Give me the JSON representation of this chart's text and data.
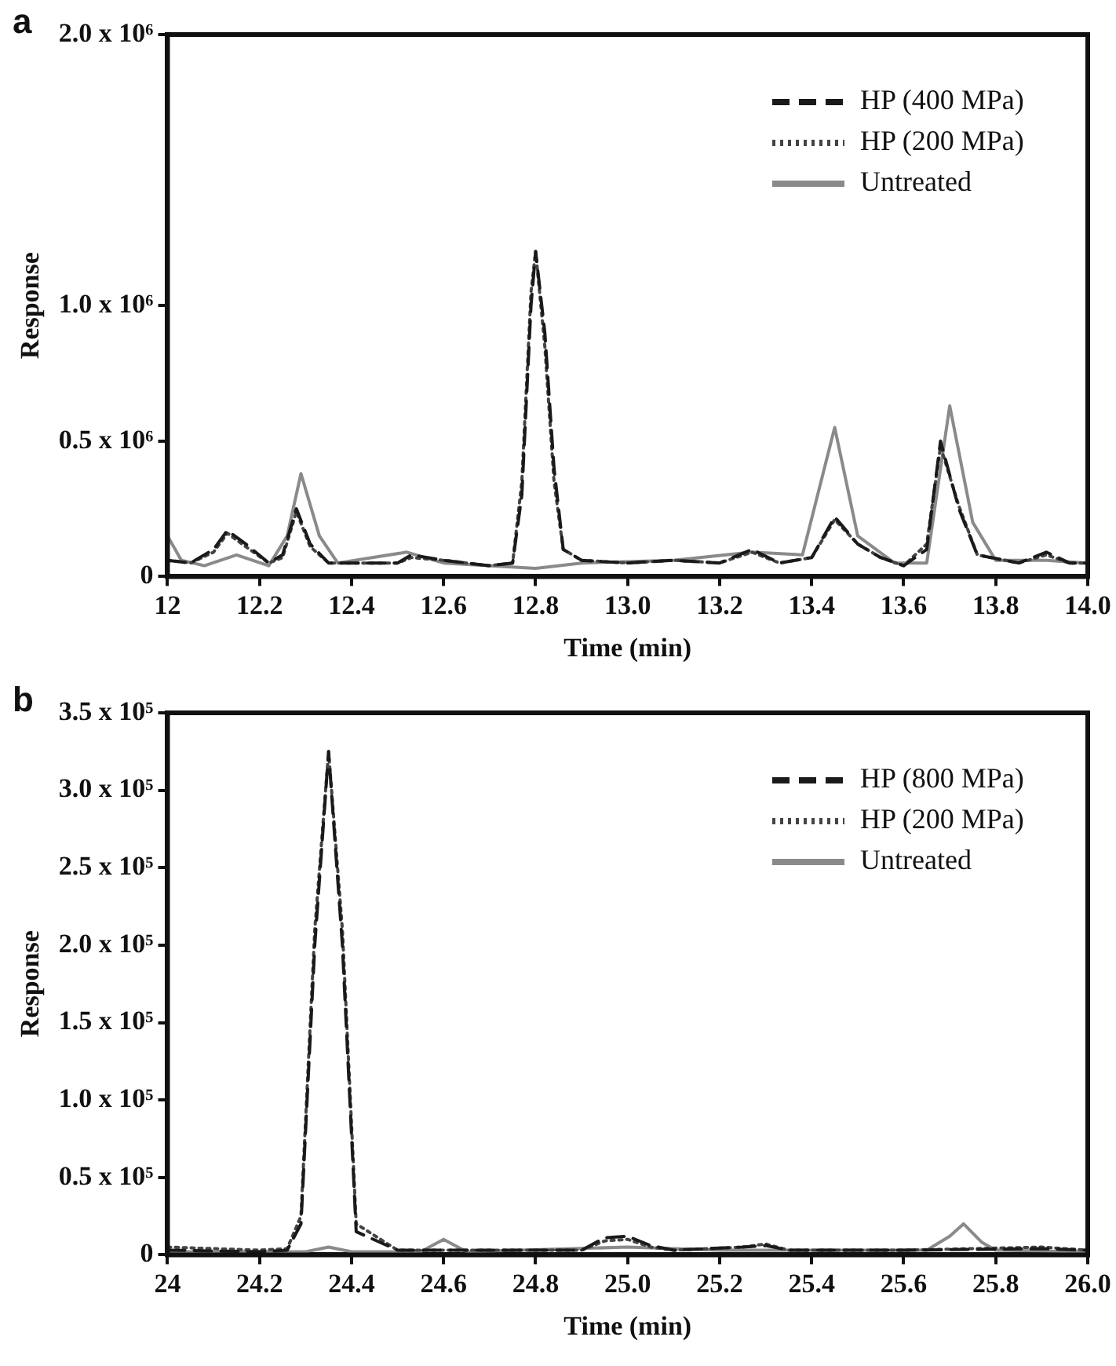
{
  "chart_data": [
    {
      "type": "line",
      "annotations": [
        "a"
      ],
      "xlabel": "Time (min)",
      "ylabel": "Response",
      "xlim": [
        12,
        14
      ],
      "ylim": [
        0,
        2000000
      ],
      "xticks": [
        12,
        12.2,
        12.4,
        12.6,
        12.8,
        {
          "value": 13,
          "label": "13.0"
        },
        13.2,
        13.4,
        13.6,
        13.8,
        {
          "value": 14,
          "label": "14.0"
        }
      ],
      "yticks": [
        0,
        {
          "value": 500000,
          "label": "0.5 x 10⁶"
        },
        {
          "value": 1000000,
          "label": "1.0 x 10⁶"
        },
        {
          "value": 2000000,
          "label": "2.0 x 10⁶"
        }
      ],
      "legend": "top right",
      "grid": false,
      "series": [
        {
          "name": "HP (400 MPa)",
          "color": "#1a1a1a",
          "line_style": "dashed",
          "x": [
            12,
            12.05,
            12.1,
            12.13,
            12.17,
            12.22,
            12.25,
            12.28,
            12.31,
            12.35,
            12.5,
            12.53,
            12.6,
            12.7,
            12.75,
            12.77,
            12.79,
            12.8,
            12.82,
            12.84,
            12.86,
            12.9,
            13,
            13.1,
            13.2,
            13.27,
            13.33,
            13.4,
            13.45,
            13.5,
            13.55,
            13.6,
            13.65,
            13.68,
            13.72,
            13.76,
            13.85,
            13.91,
            13.96,
            14
          ],
          "values": [
            60000,
            50000,
            100000,
            170000,
            120000,
            50000,
            80000,
            250000,
            120000,
            50000,
            50000,
            80000,
            60000,
            40000,
            50000,
            300000,
            1000000,
            1200000,
            900000,
            400000,
            100000,
            60000,
            50000,
            60000,
            50000,
            100000,
            50000,
            70000,
            220000,
            120000,
            70000,
            40000,
            100000,
            500000,
            250000,
            80000,
            50000,
            90000,
            50000,
            50000
          ]
        },
        {
          "name": "HP (200 MPa)",
          "color": "#444444",
          "line_style": "dotted",
          "x": [
            12,
            12.05,
            12.1,
            12.13,
            12.17,
            12.22,
            12.25,
            12.28,
            12.31,
            12.35,
            12.5,
            12.53,
            12.6,
            12.7,
            12.75,
            12.77,
            12.79,
            12.8,
            12.82,
            12.84,
            12.86,
            12.9,
            13,
            13.1,
            13.2,
            13.27,
            13.33,
            13.4,
            13.45,
            13.5,
            13.55,
            13.6,
            13.65,
            13.68,
            13.72,
            13.76,
            13.85,
            13.91,
            13.96,
            14
          ],
          "values": [
            60000,
            50000,
            90000,
            160000,
            110000,
            50000,
            70000,
            240000,
            110000,
            50000,
            50000,
            70000,
            60000,
            40000,
            50000,
            350000,
            1050000,
            1200000,
            850000,
            350000,
            100000,
            60000,
            50000,
            60000,
            50000,
            90000,
            50000,
            70000,
            210000,
            120000,
            70000,
            40000,
            120000,
            480000,
            260000,
            80000,
            50000,
            80000,
            50000,
            50000
          ]
        },
        {
          "name": "Untreated",
          "color": "#8a8a8a",
          "line_style": "solid",
          "x": [
            12,
            12.03,
            12.08,
            12.15,
            12.22,
            12.26,
            12.29,
            12.33,
            12.37,
            12.52,
            12.6,
            12.8,
            12.9,
            13.1,
            13.27,
            13.38,
            13.45,
            13.5,
            13.58,
            13.65,
            13.7,
            13.75,
            13.8,
            13.91,
            14
          ],
          "values": [
            150000,
            60000,
            40000,
            80000,
            40000,
            150000,
            380000,
            150000,
            50000,
            90000,
            50000,
            30000,
            50000,
            60000,
            90000,
            80000,
            550000,
            150000,
            50000,
            50000,
            630000,
            200000,
            60000,
            60000,
            50000
          ]
        }
      ]
    },
    {
      "type": "line",
      "annotations": [
        "b"
      ],
      "xlabel": "Time (min)",
      "ylabel": "Response",
      "xlim": [
        24,
        26
      ],
      "ylim": [
        0,
        350000
      ],
      "xticks": [
        24,
        24.2,
        24.4,
        24.6,
        24.8,
        {
          "value": 25,
          "label": "25.0"
        },
        25.2,
        25.4,
        25.6,
        25.8,
        {
          "value": 26,
          "label": "26.0"
        }
      ],
      "yticks": [
        0,
        {
          "value": 50000,
          "label": "0.5 x 10⁵"
        },
        {
          "value": 100000,
          "label": "1.0 x 10⁵"
        },
        {
          "value": 150000,
          "label": "1.5 x 10⁵"
        },
        {
          "value": 200000,
          "label": "2.0 x 10⁵"
        },
        {
          "value": 250000,
          "label": "2.5 x 10⁵"
        },
        {
          "value": 300000,
          "label": "3.0 x 10⁵"
        },
        {
          "value": 350000,
          "label": "3.5 x 10⁵"
        }
      ],
      "legend": "top right",
      "grid": false,
      "series": [
        {
          "name": "HP (800 MPa)",
          "color": "#1a1a1a",
          "line_style": "dashed",
          "x": [
            24,
            24.2,
            24.26,
            24.29,
            24.32,
            24.35,
            24.38,
            24.41,
            24.5,
            24.9,
            24.95,
            25,
            25.05,
            25.1,
            25.25,
            25.3,
            25.35,
            25.6,
            25.9,
            26
          ],
          "values": [
            3000,
            2000,
            3000,
            20000,
            200000,
            325000,
            200000,
            15000,
            3000,
            3000,
            11000,
            12000,
            6000,
            3000,
            5000,
            6000,
            3000,
            3000,
            4000,
            3000
          ]
        },
        {
          "name": "HP (200 MPa)",
          "color": "#444444",
          "line_style": "dotted",
          "x": [
            24,
            24.2,
            24.26,
            24.29,
            24.32,
            24.35,
            24.38,
            24.41,
            24.5,
            24.9,
            24.95,
            25,
            25.05,
            25.1,
            25.25,
            25.3,
            25.35,
            25.6,
            25.9,
            26
          ],
          "values": [
            5000,
            3000,
            4000,
            25000,
            210000,
            325000,
            210000,
            20000,
            3000,
            3000,
            9000,
            10000,
            5000,
            3000,
            5000,
            7000,
            3000,
            3000,
            5000,
            3000
          ]
        },
        {
          "name": "Untreated",
          "color": "#8a8a8a",
          "line_style": "solid",
          "x": [
            24,
            24.3,
            24.35,
            24.4,
            24.55,
            24.6,
            24.65,
            25,
            25.2,
            25.65,
            25.7,
            25.73,
            25.77,
            25.8,
            26
          ],
          "values": [
            2000,
            2000,
            5000,
            2000,
            2000,
            10000,
            2000,
            5000,
            3000,
            3000,
            12000,
            20000,
            8000,
            3000,
            2000
          ]
        }
      ]
    }
  ]
}
